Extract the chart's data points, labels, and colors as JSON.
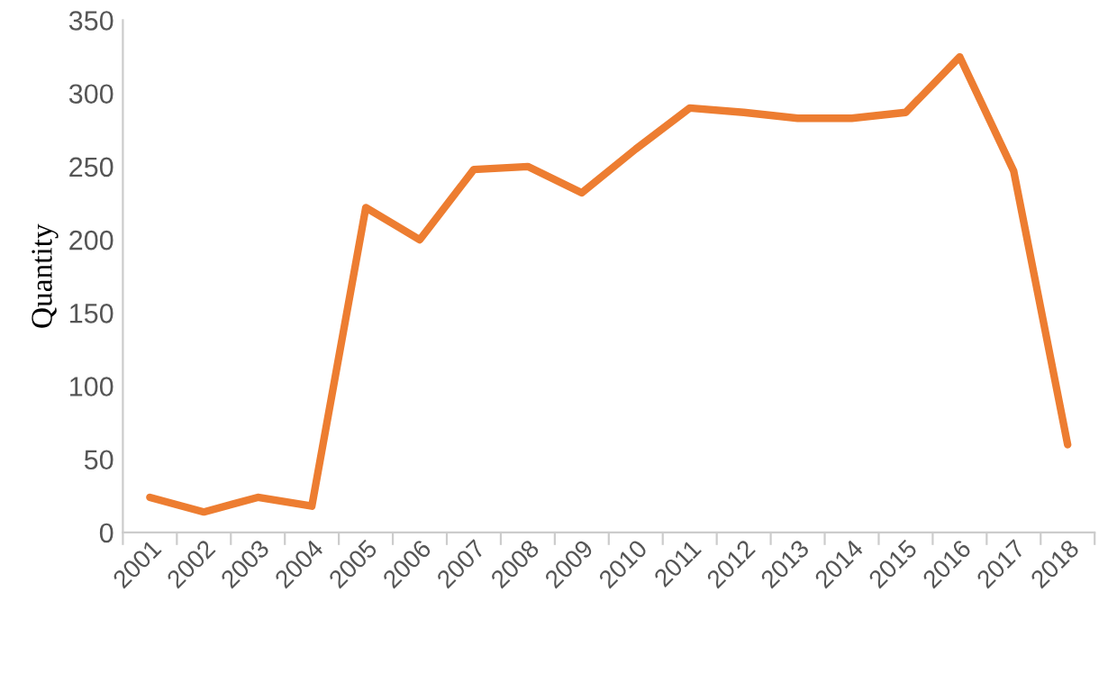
{
  "chart_data": {
    "type": "line",
    "ylabel": "Quantity",
    "categories": [
      "2001",
      "2002",
      "2003",
      "2004",
      "2005",
      "2006",
      "2007",
      "2008",
      "2009",
      "2010",
      "2011",
      "2012",
      "2013",
      "2014",
      "2015",
      "2016",
      "2017",
      "2018"
    ],
    "series": [
      {
        "color": "#ed7d31",
        "values": [
          24,
          14,
          24,
          18,
          222,
          200,
          248,
          250,
          232,
          262,
          290,
          287,
          283,
          283,
          287,
          325,
          247,
          60
        ]
      }
    ],
    "ylim": [
      0,
      350
    ],
    "yticks": [
      0,
      50,
      100,
      150,
      200,
      250,
      300,
      350
    ],
    "grid": false,
    "legend": false
  }
}
